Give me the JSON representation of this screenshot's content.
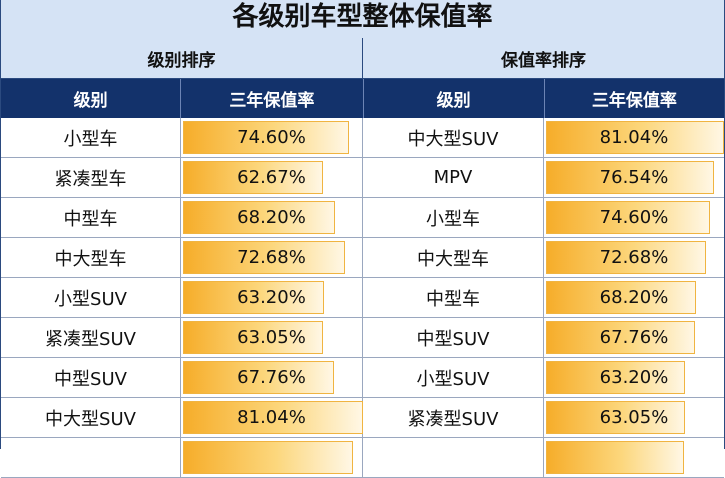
{
  "title": "各级别车型整体保值率",
  "sections": {
    "left": "级别排序",
    "right": "保值率排序"
  },
  "headers": {
    "level": "级别",
    "rate": "三年保值率",
    "level2": "级别",
    "rate2": "三年保值率"
  },
  "colors": {
    "header_bg": "#13326b",
    "section_bg": "#d5e3f5",
    "bar_start": "#f6ad2a",
    "bar_end": "#fff7e5"
  },
  "by_level": [
    {
      "name": "小型车",
      "rate": "74.60%",
      "value": 74.6
    },
    {
      "name": "紧凑型车",
      "rate": "62.67%",
      "value": 62.67
    },
    {
      "name": "中型车",
      "rate": "68.20%",
      "value": 68.2
    },
    {
      "name": "中大型车",
      "rate": "72.68%",
      "value": 72.68
    },
    {
      "name": "小型SUV",
      "rate": "63.20%",
      "value": 63.2
    },
    {
      "name": "紧凑型SUV",
      "rate": "63.05%",
      "value": 63.05
    },
    {
      "name": "中型SUV",
      "rate": "67.76%",
      "value": 67.76
    },
    {
      "name": "中大型SUV",
      "rate": "81.04%",
      "value": 81.04
    },
    {
      "name": "",
      "rate": "",
      "value": 76.54
    }
  ],
  "by_rate": [
    {
      "name": "中大型SUV",
      "rate": "81.04%",
      "value": 81.04
    },
    {
      "name": "MPV",
      "rate": "76.54%",
      "value": 76.54
    },
    {
      "name": "小型车",
      "rate": "74.60%",
      "value": 74.6
    },
    {
      "name": "中大型车",
      "rate": "72.68%",
      "value": 72.68
    },
    {
      "name": "中型车",
      "rate": "68.20%",
      "value": 68.2
    },
    {
      "name": "中型SUV",
      "rate": "67.76%",
      "value": 67.76
    },
    {
      "name": "小型SUV",
      "rate": "63.20%",
      "value": 63.2
    },
    {
      "name": "紧凑型SUV",
      "rate": "63.05%",
      "value": 63.05
    },
    {
      "name": "",
      "rate": "",
      "value": 62.67
    }
  ]
}
